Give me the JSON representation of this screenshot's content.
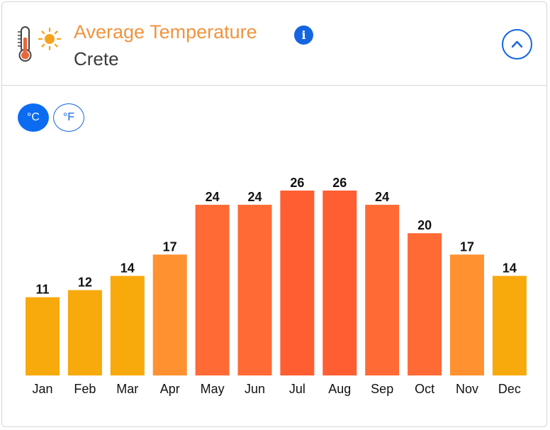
{
  "header": {
    "title": "Average Temperature",
    "location": "Crete",
    "info_icon": "info-icon",
    "collapse_icon": "chevron-up-icon"
  },
  "units": {
    "celsius_label": "°C",
    "fahrenheit_label": "°F",
    "selected": "°C"
  },
  "colors": {
    "title": "#f0943f",
    "accent": "#1565e0",
    "cool": "#f8a90b",
    "mild": "#ff9130",
    "warm": "#ff6a35",
    "hot": "#ff5e33"
  },
  "chart_data": {
    "type": "bar",
    "title": "",
    "xlabel": "",
    "ylabel": "",
    "categories": [
      "Jan",
      "Feb",
      "Mar",
      "Apr",
      "May",
      "Jun",
      "Jul",
      "Aug",
      "Sep",
      "Oct",
      "Nov",
      "Dec"
    ],
    "values": [
      11,
      12,
      14,
      17,
      24,
      24,
      26,
      26,
      24,
      20,
      17,
      14
    ],
    "ylim": [
      0,
      26
    ],
    "data_labels": true,
    "grid": false,
    "legend": "none"
  }
}
